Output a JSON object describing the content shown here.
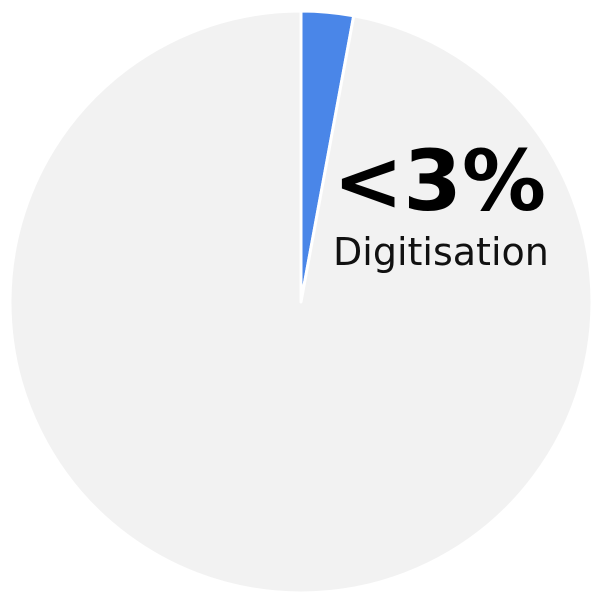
{
  "chart_data": {
    "type": "pie",
    "categories": [
      "Digitisation",
      null
    ],
    "values": [
      2.9,
      97.1
    ],
    "value_labels": [
      "<3%",
      null
    ],
    "colors": [
      "#4a86e8",
      "#f2f2f2"
    ]
  }
}
